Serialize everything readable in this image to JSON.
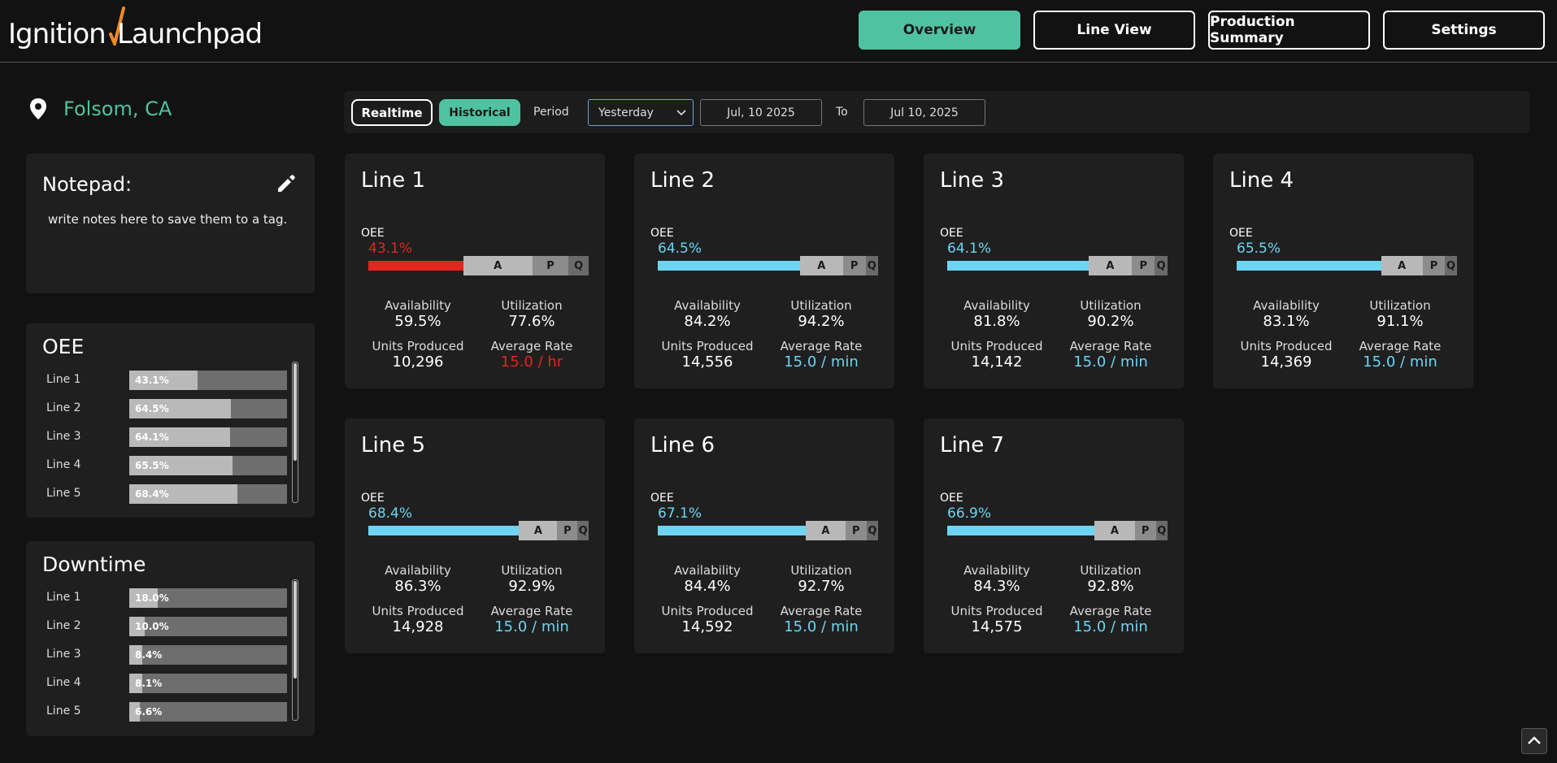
{
  "header": {
    "logo_left": "Ignition",
    "logo_right": "Launchpad",
    "nav": [
      "Overview",
      "Line View",
      "Production Summary",
      "Settings"
    ]
  },
  "location": "Folsom, CA",
  "notepad": {
    "title": "Notepad:",
    "text": "write notes here to save them to a tag."
  },
  "oee_panel": {
    "title": "OEE",
    "rows": [
      {
        "label": "Line 1",
        "value": 43.1,
        "value_label": "43.1%"
      },
      {
        "label": "Line 2",
        "value": 64.5,
        "value_label": "64.5%"
      },
      {
        "label": "Line 3",
        "value": 64.1,
        "value_label": "64.1%"
      },
      {
        "label": "Line 4",
        "value": 65.5,
        "value_label": "65.5%"
      },
      {
        "label": "Line 5",
        "value": 68.4,
        "value_label": "68.4%"
      }
    ]
  },
  "downtime_panel": {
    "title": "Downtime",
    "rows": [
      {
        "label": "Line 1",
        "value": 18.0,
        "value_label": "18.0%"
      },
      {
        "label": "Line 2",
        "value": 10.0,
        "value_label": "10.0%"
      },
      {
        "label": "Line 3",
        "value": 8.4,
        "value_label": "8.4%"
      },
      {
        "label": "Line 4",
        "value": 8.1,
        "value_label": "8.1%"
      },
      {
        "label": "Line 5",
        "value": 6.6,
        "value_label": "6.6%"
      }
    ]
  },
  "filters": {
    "realtime": "Realtime",
    "historical": "Historical",
    "period_label": "Period",
    "period": "Yesterday",
    "start": "Jul, 10 2025",
    "to": "To",
    "end": "Jul 10, 2025"
  },
  "card_labels": {
    "oee": "OEE",
    "loss": [
      "A",
      "P",
      "Q"
    ],
    "availability": "Availability",
    "utilization": "Utilization",
    "units_produced": "Units Produced",
    "average_rate": "Average Rate"
  },
  "lines": [
    {
      "name": "Line 1",
      "oee": 43.1,
      "oee_label": "43.1%",
      "color": "#e3261f",
      "availability": "59.5%",
      "utilization": "77.6%",
      "units_produced": "10,296",
      "average_rate": "15.0 / hr"
    },
    {
      "name": "Line 2",
      "oee": 64.5,
      "oee_label": "64.5%",
      "color": "#6dd4f2",
      "availability": "84.2%",
      "utilization": "94.2%",
      "units_produced": "14,556",
      "average_rate": "15.0 / min"
    },
    {
      "name": "Line 3",
      "oee": 64.1,
      "oee_label": "64.1%",
      "color": "#6dd4f2",
      "availability": "81.8%",
      "utilization": "90.2%",
      "units_produced": "14,142",
      "average_rate": "15.0 / min"
    },
    {
      "name": "Line 4",
      "oee": 65.5,
      "oee_label": "65.5%",
      "color": "#6dd4f2",
      "availability": "83.1%",
      "utilization": "91.1%",
      "units_produced": "14,369",
      "average_rate": "15.0 / min"
    },
    {
      "name": "Line 5",
      "oee": 68.4,
      "oee_label": "68.4%",
      "color": "#6dd4f2",
      "availability": "86.3%",
      "utilization": "92.9%",
      "units_produced": "14,928",
      "average_rate": "15.0 / min"
    },
    {
      "name": "Line 6",
      "oee": 67.1,
      "oee_label": "67.1%",
      "color": "#6dd4f2",
      "availability": "84.4%",
      "utilization": "92.7%",
      "units_produced": "14,592",
      "average_rate": "15.0 / min"
    },
    {
      "name": "Line 7",
      "oee": 66.9,
      "oee_label": "66.9%",
      "color": "#6dd4f2",
      "availability": "84.3%",
      "utilization": "92.8%",
      "units_produced": "14,575",
      "average_rate": "15.0 / min"
    }
  ]
}
